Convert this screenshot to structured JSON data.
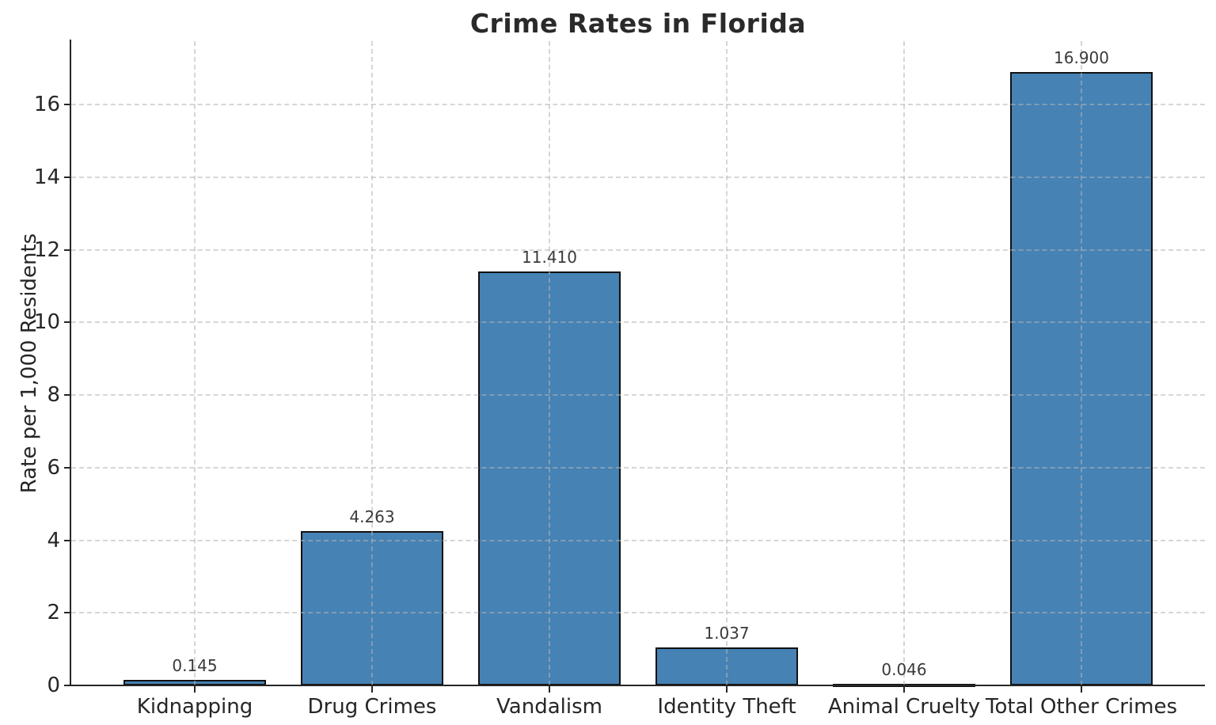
{
  "title": "Crime Rates in Florida",
  "chart_data": {
    "type": "bar",
    "title": "Crime Rates in Florida",
    "xlabel": "",
    "ylabel": "Rate per 1,000 Residents",
    "categories": [
      "Kidnapping",
      "Drug Crimes",
      "Vandalism",
      "Identity Theft",
      "Animal Cruelty",
      "Total Other Crimes"
    ],
    "values": [
      0.145,
      4.263,
      11.41,
      1.037,
      0.046,
      16.9
    ],
    "value_labels": [
      "0.145",
      "4.263",
      "11.410",
      "1.037",
      "0.046",
      "16.900"
    ],
    "yticks": [
      0,
      2,
      4,
      6,
      8,
      10,
      12,
      14,
      16
    ],
    "ylim": [
      0,
      17.75
    ],
    "grid": true,
    "grid_style": "dashed",
    "legend": "none",
    "bar_color": "#4682b4",
    "bar_edge_color": "#111111",
    "grid_color": "#b4b4b4",
    "text_color": "#262626"
  }
}
